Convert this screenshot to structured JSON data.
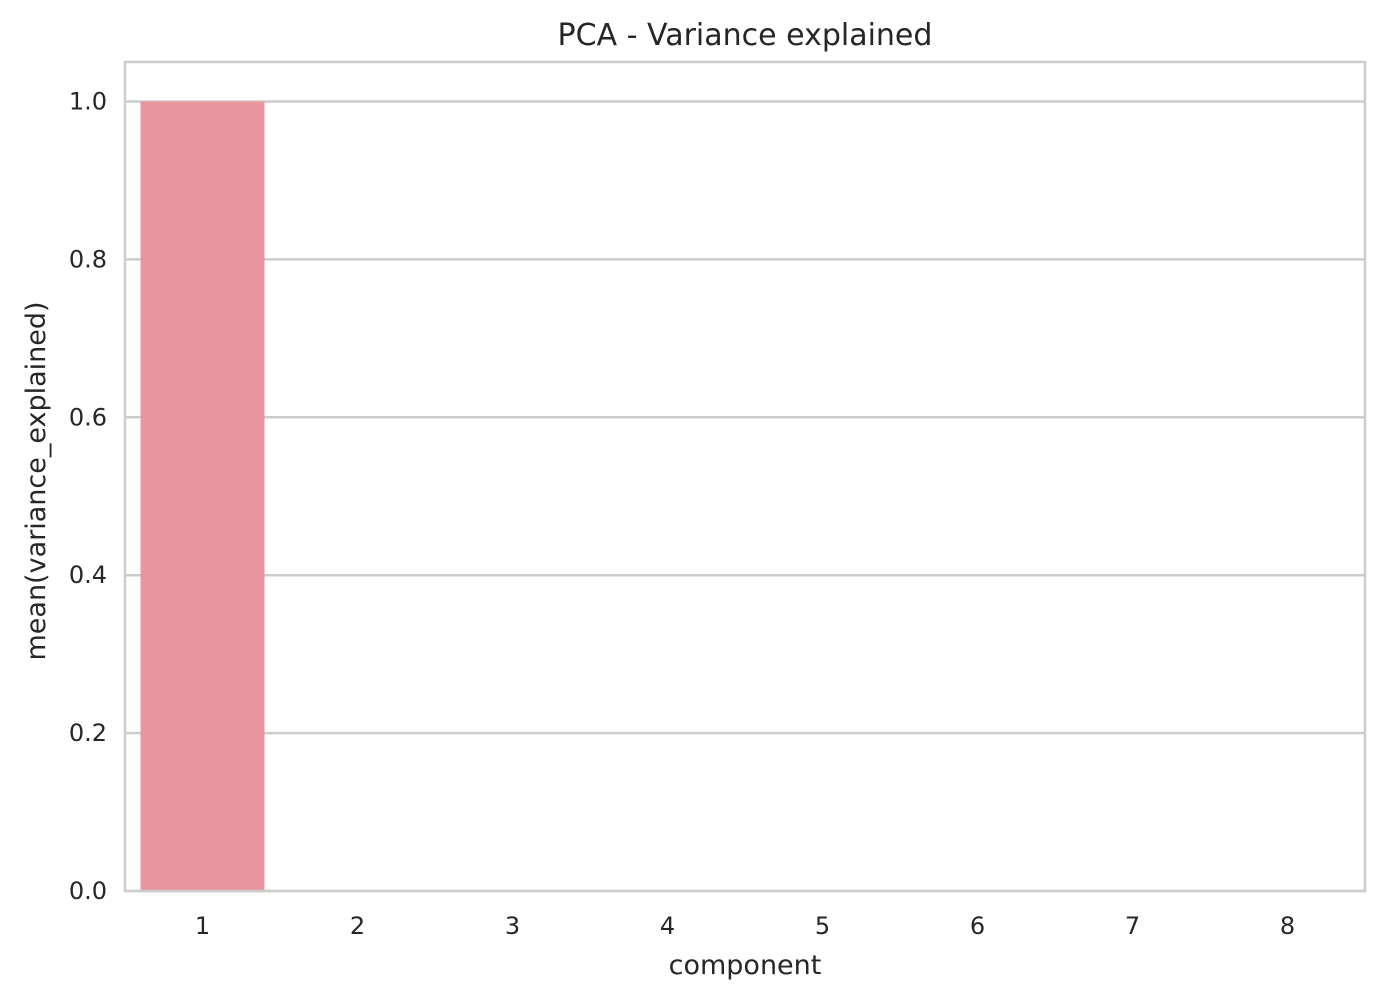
{
  "chart_data": {
    "type": "bar",
    "title": "PCA - Variance explained",
    "xlabel": "component",
    "ylabel": "mean(variance_explained)",
    "categories": [
      "1",
      "2",
      "3",
      "4",
      "5",
      "6",
      "7",
      "8"
    ],
    "values": [
      1.0,
      0.0,
      0.0,
      0.0,
      0.0,
      0.0,
      0.0,
      0.0
    ],
    "ylim": [
      0,
      1.05
    ],
    "yticks": [
      "0.0",
      "0.2",
      "0.4",
      "0.6",
      "0.8",
      "1.0"
    ],
    "ytick_values": [
      0.0,
      0.2,
      0.4,
      0.6,
      0.8,
      1.0
    ],
    "grid": "horizontal",
    "bar_colors": [
      "#e8959f",
      "#cf9a4a",
      "#9ea84a",
      "#4faa6a",
      "#4fac9f",
      "#55a8c9",
      "#9a9ce8",
      "#e28ec9"
    ]
  }
}
